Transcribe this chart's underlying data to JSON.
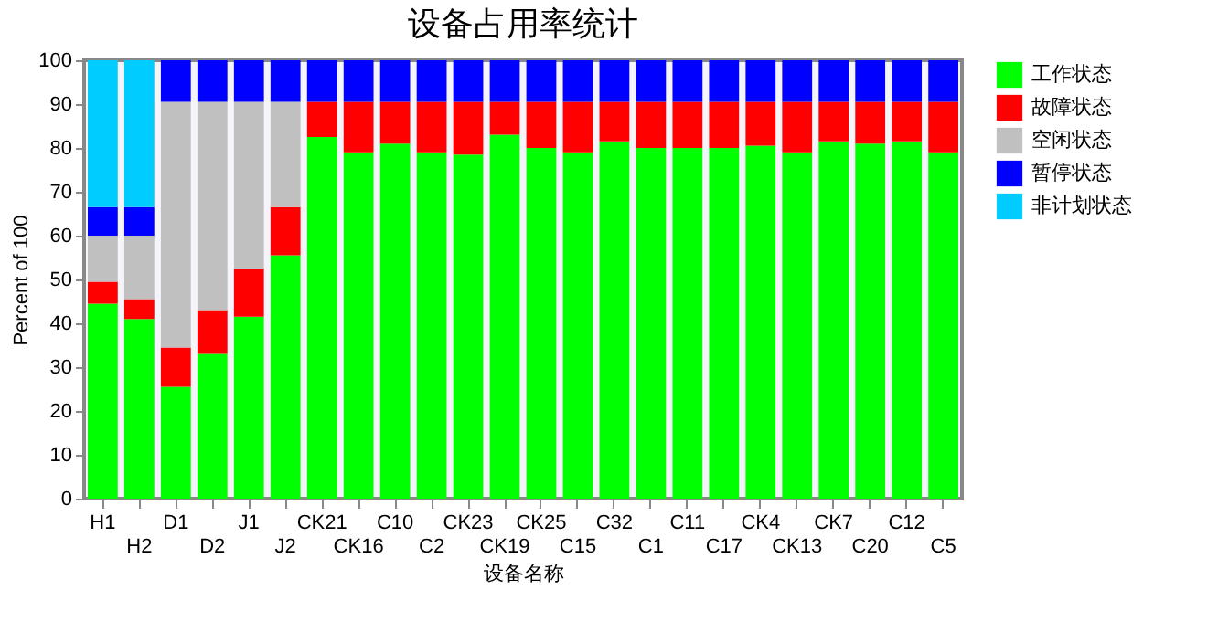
{
  "chart_data": {
    "type": "bar",
    "title": "设备占用率统计",
    "xlabel": "设备名称",
    "ylabel": "Percent of 100",
    "categories": [
      "H1",
      "H2",
      "D1",
      "D2",
      "J1",
      "J2",
      "CK21",
      "CK16",
      "C10",
      "C2",
      "CK23",
      "CK19",
      "CK25",
      "C15",
      "C32",
      "C1",
      "C11",
      "C17",
      "CK4",
      "CK13",
      "CK7",
      "C20",
      "C12",
      "C5"
    ],
    "stacked": true,
    "ylim": [
      0,
      100
    ],
    "yticks": [
      0,
      10,
      20,
      30,
      40,
      50,
      60,
      70,
      80,
      90,
      100
    ],
    "grid": false,
    "legend": "right",
    "series": [
      {
        "name": "工作状态",
        "color": "#00ff00",
        "values": [
          44.5,
          41,
          25.5,
          33,
          41.5,
          55.5,
          82.5,
          79,
          81,
          79,
          78.5,
          83,
          80,
          79,
          81.5,
          80,
          80,
          80,
          80.5,
          79,
          81.5,
          81,
          81.5,
          79
        ]
      },
      {
        "name": "故障状态",
        "color": "#ff0000",
        "values": [
          5,
          4.5,
          9,
          10,
          11,
          11,
          8,
          11.5,
          9.5,
          11.5,
          12,
          7.5,
          10.5,
          11.5,
          9,
          10.5,
          10.5,
          10.5,
          10,
          11.5,
          9,
          9.5,
          9,
          11.5
        ]
      },
      {
        "name": "空闲状态",
        "color": "#c0c0c0",
        "values": [
          10.5,
          14.5,
          56,
          47.5,
          38,
          24,
          0,
          0,
          0,
          0,
          0,
          0,
          0,
          0,
          0,
          0,
          0,
          0,
          0,
          0,
          0,
          0,
          0,
          0
        ]
      },
      {
        "name": "暂停状态",
        "color": "#0000ff",
        "values": [
          6.5,
          6.5,
          9.5,
          9.5,
          9.5,
          9.5,
          9.5,
          9.5,
          9.5,
          9.5,
          9.5,
          9.5,
          9.5,
          9.5,
          9.5,
          9.5,
          9.5,
          9.5,
          9.5,
          9.5,
          9.5,
          9.5,
          9.5,
          9.5
        ]
      },
      {
        "name": "非计划状态",
        "color": "#00ccff",
        "values": [
          33.5,
          33.5,
          0,
          0,
          0,
          0,
          0,
          0,
          0,
          0,
          0,
          0,
          0,
          0,
          0,
          0,
          0,
          0,
          0,
          0,
          0,
          0,
          0,
          0
        ]
      }
    ]
  }
}
